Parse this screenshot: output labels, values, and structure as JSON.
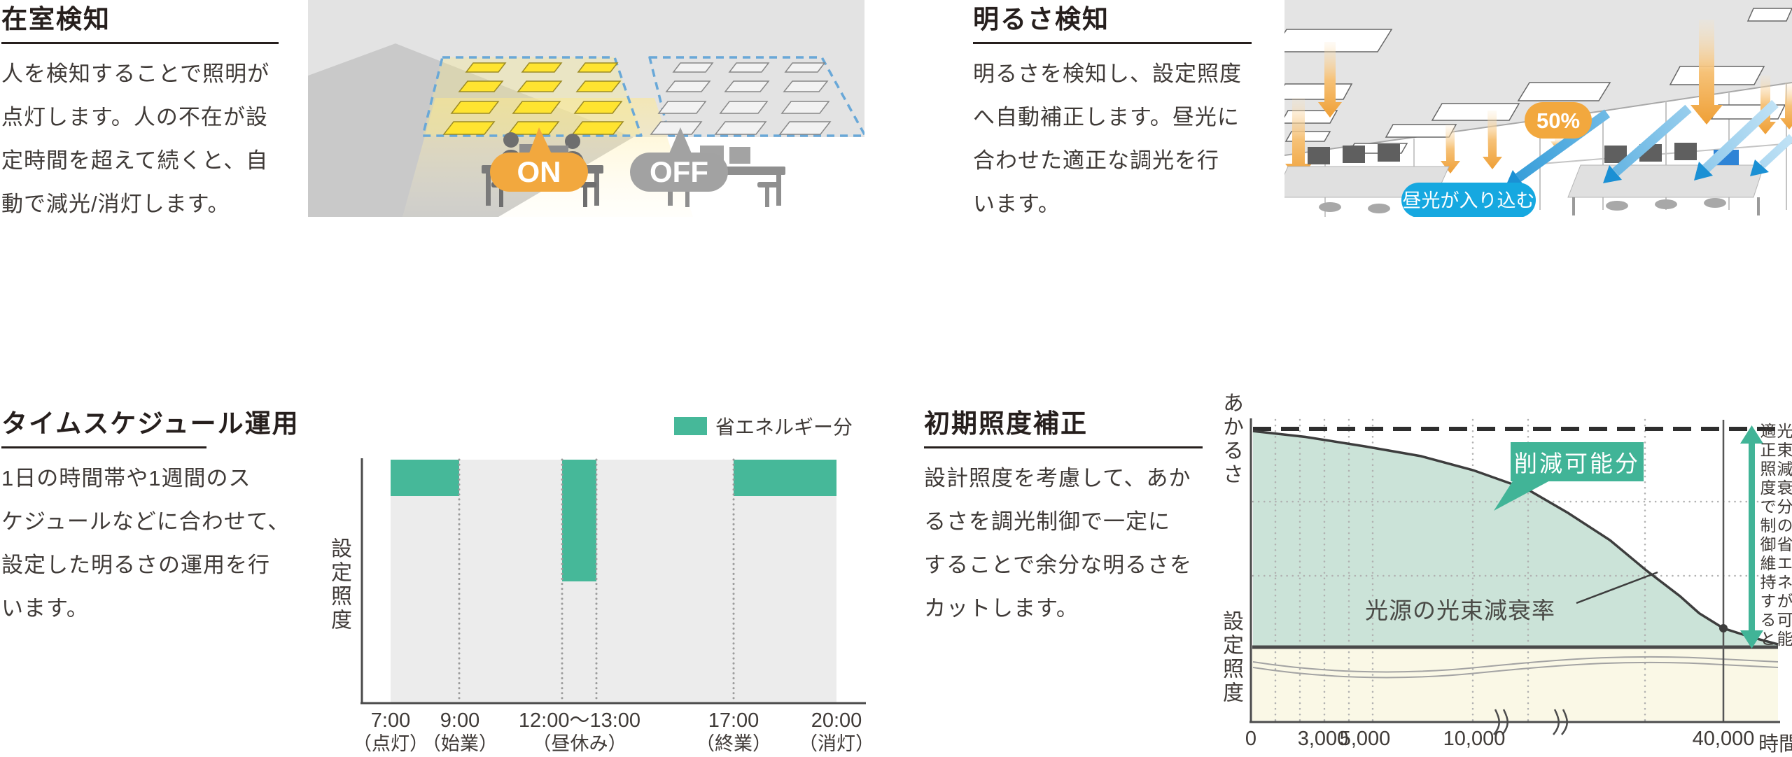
{
  "colors": {
    "green": "#41b497",
    "teal_fill": "#cbe3d8",
    "orange": "#f2a83e",
    "gray_badge": "#a2a2a2",
    "cyan": "#16a8e0",
    "yellow_band": "#faf8e6",
    "blue_dashed_outline": "#69a8d8",
    "bar_gray": "#ececec"
  },
  "sections": {
    "occupancy": {
      "title": "在室検知",
      "body": "人を検知することで照明が\n点灯します。人の不在が設\n定時間を超えて続くと、自\n動で減光/消灯します。",
      "on_label": "ON",
      "off_label": "OFF"
    },
    "brightness": {
      "title": "明るさ検知",
      "body": "明るさを検知し、設定照度\nへ自動補正します。昼光に\n合わせた適正な調光を行\nいます。",
      "percent_label": "50%",
      "daylight_label": "昼光が入り込む"
    },
    "schedule": {
      "title": "タイムスケジュール運用",
      "body": "1日の時間帯や1週間のス\nケジュールなどに合わせて、\n設定した明るさの運用を行\nいます。"
    },
    "initial": {
      "title": "初期照度補正",
      "body": "設計照度を考慮して、あか\nるさを調光制御で一定に\nすることで余分な明るさを\nカットします。"
    }
  },
  "chart_data": [
    {
      "type": "bar",
      "title": "タイムスケジュール運用",
      "ylabel": "設定照度",
      "legend": [
        {
          "label": "省エネルギー分",
          "color": "#46b899"
        }
      ],
      "bar_color": "#ececec",
      "saving_color": "#46b899",
      "x_ticks": [
        {
          "time": "7:00",
          "note": "（点灯）"
        },
        {
          "time": "9:00",
          "note": "（始業）"
        },
        {
          "time": "12:00〜13:00",
          "note": "（昼休み）"
        },
        {
          "time": "17:00",
          "note": "（終業）"
        },
        {
          "time": "20:00",
          "note": "（消灯）"
        }
      ],
      "x_start_hour": 7,
      "x_end_hour": 20,
      "segments": [
        {
          "from_hour": 7,
          "to_hour": 9,
          "saving_fraction": 0.15
        },
        {
          "from_hour": 9,
          "to_hour": 12,
          "saving_fraction": 0
        },
        {
          "from_hour": 12,
          "to_hour": 13,
          "saving_fraction": 0.5
        },
        {
          "from_hour": 13,
          "to_hour": 17,
          "saving_fraction": 0
        },
        {
          "from_hour": 17,
          "to_hour": 20,
          "saving_fraction": 0.15
        }
      ]
    },
    {
      "type": "area",
      "ylabel_top": "あかるさ",
      "ylabel_bottom": "設定照度",
      "x_ticks": [
        "0",
        "3,000",
        "5,000",
        "10,000",
        "40,000"
      ],
      "x_unit": "時間",
      "reduction_label": "削減可能分",
      "decay_label": "光源の光束減衰率",
      "side_note_left": "適正照度で制御維持すると",
      "side_note_right": "光束減衰分の省エネが可能",
      "area_color": "#cbe3d8",
      "band_color": "#faf8e6",
      "marker_fraction": 0.896,
      "curve_points": [
        [
          0,
          0.99
        ],
        [
          0.1,
          0.963
        ],
        [
          0.213,
          0.92
        ],
        [
          0.32,
          0.875
        ],
        [
          0.419,
          0.811
        ],
        [
          0.524,
          0.721
        ],
        [
          0.6,
          0.615
        ],
        [
          0.68,
          0.49
        ],
        [
          0.75,
          0.35
        ],
        [
          0.813,
          0.234
        ],
        [
          0.85,
          0.155
        ],
        [
          0.896,
          0.0865
        ],
        [
          0.95,
          0.045
        ],
        [
          1,
          0.013
        ]
      ]
    }
  ]
}
